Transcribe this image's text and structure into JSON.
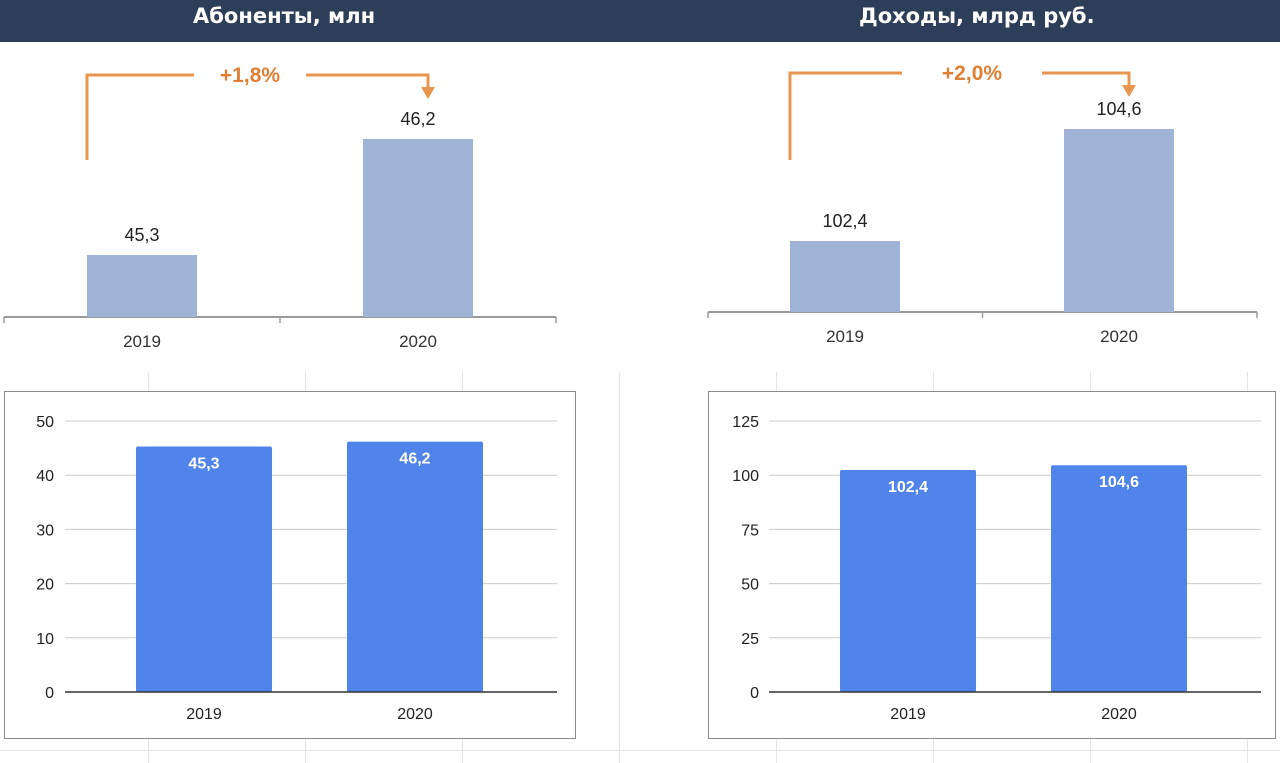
{
  "header": {
    "left_title": "Абоненты, млн",
    "right_title": "Доходы, млрд руб."
  },
  "colors": {
    "header_bg": "#2d3e59",
    "top_bar": "#9fb3d6",
    "arrow": "#e8954f",
    "growth_text": "#e07f32",
    "bottom_bar": "#5084ea",
    "grid": "#cccccc"
  },
  "chart_data": [
    {
      "type": "bar",
      "title": "Абоненты, млн",
      "categories": [
        "2019",
        "2020"
      ],
      "values": [
        45.3,
        46.2
      ],
      "value_labels": [
        "45,3",
        "46,2"
      ],
      "growth_label": "+1,8%",
      "xlabel": "",
      "ylabel": "",
      "grid": false
    },
    {
      "type": "bar",
      "title": "Доходы, млрд руб.",
      "categories": [
        "2019",
        "2020"
      ],
      "values": [
        102.4,
        104.6
      ],
      "value_labels": [
        "102,4",
        "104,6"
      ],
      "growth_label": "+2,0%",
      "xlabel": "",
      "ylabel": "",
      "grid": false
    },
    {
      "type": "bar",
      "categories": [
        "2019",
        "2020"
      ],
      "values": [
        45.3,
        46.2
      ],
      "value_labels": [
        "45,3",
        "46,2"
      ],
      "ylim": [
        0,
        50
      ],
      "yticks": [
        "0",
        "10",
        "20",
        "30",
        "40",
        "50"
      ],
      "xlabel": "",
      "ylabel": "",
      "grid": true
    },
    {
      "type": "bar",
      "categories": [
        "2019",
        "2020"
      ],
      "values": [
        102.4,
        104.6
      ],
      "value_labels": [
        "102,4",
        "104,6"
      ],
      "ylim": [
        0,
        125
      ],
      "yticks": [
        "0",
        "25",
        "50",
        "75",
        "100",
        "125"
      ],
      "xlabel": "",
      "ylabel": "",
      "grid": true
    }
  ]
}
